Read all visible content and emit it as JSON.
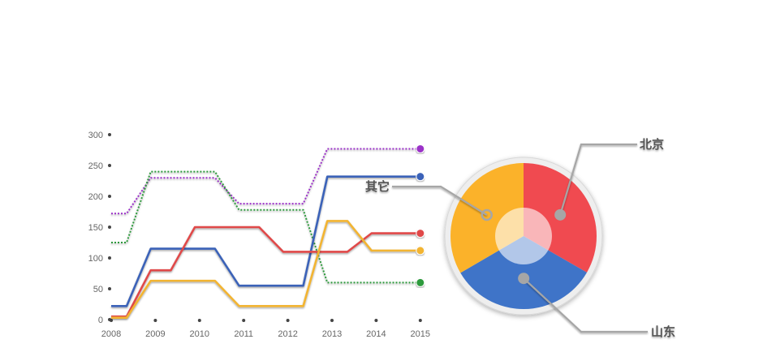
{
  "chart_data": [
    {
      "type": "line",
      "title": "",
      "xlabel": "",
      "ylabel": "",
      "x": [
        "2008",
        "2009",
        "2010",
        "2011",
        "2012",
        "2013",
        "2014",
        "2015"
      ],
      "ylim": [
        0,
        300
      ],
      "yticks": [
        0,
        50,
        100,
        150,
        200,
        250,
        300
      ],
      "grid": false,
      "legend": "none",
      "series": [
        {
          "color": "#9b30c8",
          "style": "dotted",
          "values": [
            172,
            230,
            230,
            188,
            188,
            277,
            277,
            277
          ]
        },
        {
          "color": "#2e9a3c",
          "style": "dotted",
          "values": [
            125,
            240,
            240,
            178,
            178,
            60,
            60,
            60
          ]
        },
        {
          "color": "#3a62b8",
          "style": "solid",
          "values": [
            22,
            115,
            115,
            55,
            55,
            232,
            232,
            232
          ]
        },
        {
          "color": "#e04848",
          "style": "solid",
          "values": [
            5,
            80,
            150,
            150,
            110,
            110,
            140,
            140
          ]
        },
        {
          "color": "#f2b432",
          "style": "solid",
          "values": [
            3,
            63,
            63,
            22,
            22,
            160,
            112,
            112
          ]
        }
      ]
    },
    {
      "type": "pie",
      "labels": [
        "北京",
        "山东",
        "其它"
      ],
      "values": [
        33.3,
        33.3,
        33.4
      ],
      "colors": [
        "#f04a50",
        "#3f74c8",
        "#fbb22a"
      ]
    }
  ]
}
